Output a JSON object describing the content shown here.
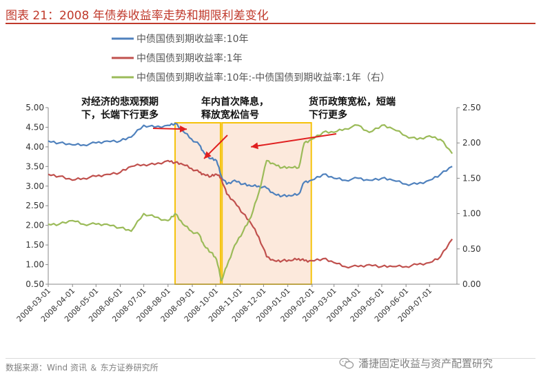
{
  "title": "图表 21：2008 年债券收益率走势和期限利差变化",
  "source": "数据来源：Wind 资讯 ＆ 东方证券研究所",
  "watermark": "潘捷固定收益与资产配置研究",
  "colors": {
    "title": "#c0392b",
    "blue": "#4f81bd",
    "red": "#c0504d",
    "green": "#9bbb59",
    "highlight": "#fbe5d6",
    "box": "#f5c20a",
    "annotation": "#e02020"
  },
  "chart_data": {
    "type": "line",
    "legend_placement": "top",
    "grid": false,
    "series": [
      {
        "name": "中债国债到期收益率:10年",
        "axis": "left",
        "color": "#4f81bd",
        "x": [
          "2008-03-01",
          "2008-03-15",
          "2008-04-01",
          "2008-04-15",
          "2008-05-01",
          "2008-05-15",
          "2008-06-01",
          "2008-06-15",
          "2008-07-01",
          "2008-07-15",
          "2008-08-01",
          "2008-08-10",
          "2008-08-20",
          "2008-08-31",
          "2008-09-10",
          "2008-09-16",
          "2008-09-25",
          "2008-10-02",
          "2008-10-08",
          "2008-10-15",
          "2008-10-25",
          "2008-11-05",
          "2008-11-15",
          "2008-11-25",
          "2008-12-05",
          "2008-12-15",
          "2008-12-25",
          "2009-01-05",
          "2009-01-15",
          "2009-01-22",
          "2009-01-31",
          "2009-02-15",
          "2009-03-01",
          "2009-03-15",
          "2009-04-01",
          "2009-04-15",
          "2009-05-01",
          "2009-05-15",
          "2009-06-01",
          "2009-06-15",
          "2009-07-01",
          "2009-07-15",
          "2009-07-30"
        ],
        "values": [
          4.15,
          4.1,
          4.05,
          4.05,
          4.1,
          4.15,
          4.15,
          4.25,
          4.55,
          4.5,
          4.55,
          4.6,
          4.4,
          4.2,
          4.05,
          3.85,
          3.7,
          3.65,
          3.25,
          3.05,
          3.15,
          3.05,
          3.0,
          3.0,
          2.95,
          2.8,
          2.75,
          2.75,
          2.8,
          3.1,
          3.15,
          3.3,
          3.2,
          3.15,
          3.2,
          3.15,
          3.2,
          3.15,
          3.05,
          3.05,
          3.15,
          3.3,
          3.5
        ]
      },
      {
        "name": "中债国债到期收益率:1年",
        "axis": "left",
        "color": "#c0504d",
        "x": [
          "2008-03-01",
          "2008-03-15",
          "2008-04-01",
          "2008-04-15",
          "2008-05-01",
          "2008-05-15",
          "2008-06-01",
          "2008-06-15",
          "2008-07-01",
          "2008-07-15",
          "2008-08-01",
          "2008-08-10",
          "2008-08-20",
          "2008-08-31",
          "2008-09-10",
          "2008-09-16",
          "2008-09-25",
          "2008-10-02",
          "2008-10-08",
          "2008-10-15",
          "2008-10-25",
          "2008-11-05",
          "2008-11-15",
          "2008-11-25",
          "2008-12-05",
          "2008-12-15",
          "2008-12-25",
          "2009-01-05",
          "2009-01-15",
          "2009-01-22",
          "2009-01-31",
          "2009-02-15",
          "2009-03-01",
          "2009-03-15",
          "2009-04-01",
          "2009-04-15",
          "2009-05-01",
          "2009-05-15",
          "2009-06-01",
          "2009-06-15",
          "2009-07-01",
          "2009-07-15",
          "2009-07-30"
        ],
        "values": [
          3.3,
          3.25,
          3.15,
          3.2,
          3.25,
          3.3,
          3.35,
          3.5,
          3.55,
          3.55,
          3.65,
          3.6,
          3.55,
          3.45,
          3.35,
          3.3,
          3.25,
          3.3,
          3.2,
          2.8,
          2.6,
          2.3,
          2.05,
          1.7,
          1.2,
          1.1,
          1.1,
          1.1,
          1.15,
          1.1,
          1.1,
          1.15,
          1.05,
          0.95,
          0.95,
          1.0,
          0.95,
          0.95,
          0.95,
          1.0,
          1.05,
          1.2,
          1.65
        ]
      },
      {
        "name": "中债国债到期收益率:10年:-中债国债到期收益率:1年（右）",
        "axis": "right",
        "color": "#9bbb59",
        "x": [
          "2008-03-01",
          "2008-03-15",
          "2008-04-01",
          "2008-04-15",
          "2008-05-01",
          "2008-05-15",
          "2008-06-01",
          "2008-06-15",
          "2008-07-01",
          "2008-07-15",
          "2008-08-01",
          "2008-08-10",
          "2008-08-20",
          "2008-08-31",
          "2008-09-10",
          "2008-09-16",
          "2008-09-25",
          "2008-10-02",
          "2008-10-08",
          "2008-10-15",
          "2008-10-25",
          "2008-11-05",
          "2008-11-15",
          "2008-11-25",
          "2008-12-05",
          "2008-12-15",
          "2008-12-25",
          "2009-01-05",
          "2009-01-15",
          "2009-01-22",
          "2009-01-31",
          "2009-02-15",
          "2009-03-01",
          "2009-03-15",
          "2009-04-01",
          "2009-04-15",
          "2009-05-01",
          "2009-05-15",
          "2009-06-01",
          "2009-06-15",
          "2009-07-01",
          "2009-07-15",
          "2009-07-30"
        ],
        "values": [
          0.85,
          0.85,
          0.9,
          0.85,
          0.85,
          0.85,
          0.8,
          0.75,
          1.0,
          0.95,
          0.9,
          1.0,
          0.85,
          0.75,
          0.7,
          0.55,
          0.45,
          0.35,
          0.05,
          0.25,
          0.55,
          0.75,
          0.95,
          1.3,
          1.75,
          1.7,
          1.65,
          1.65,
          1.65,
          2.0,
          2.05,
          2.15,
          2.15,
          2.2,
          2.25,
          2.15,
          2.25,
          2.2,
          2.1,
          2.05,
          2.1,
          2.05,
          1.85
        ]
      }
    ],
    "left_axis": {
      "ylim": [
        0.5,
        5.0
      ],
      "ticks": [
        "5.00",
        "4.50",
        "4.00",
        "3.50",
        "3.00",
        "2.50",
        "2.00",
        "1.50",
        "1.00",
        "0.50"
      ]
    },
    "right_axis": {
      "ylim": [
        0.0,
        2.5
      ],
      "ticks": [
        "2.50",
        "2.00",
        "1.50",
        "1.00",
        "0.50",
        "0.00"
      ]
    },
    "xlim": [
      "2008-03-01",
      "2009-08-05"
    ],
    "x_ticks": [
      "2008-03-01",
      "2008-04-01",
      "2008-05-01",
      "2008-06-01",
      "2008-07-01",
      "2008-08-01",
      "2008-09-01",
      "2008-10-01",
      "2008-11-01",
      "2008-12-01",
      "2009-01-01",
      "2009-02-01",
      "2009-03-01",
      "2009-04-01",
      "2009-05-01",
      "2009-06-01",
      "2009-07-01"
    ],
    "highlight_periods": [
      {
        "start": "2008-08-10",
        "end": "2008-10-07"
      },
      {
        "start": "2008-10-09",
        "end": "2009-01-31"
      }
    ],
    "annotations": [
      {
        "lines": [
          "对经济的悲观预期",
          "下，长端下行更多"
        ],
        "arrow_to": {
          "x": "2008-08-25",
          "y": 4.45
        }
      },
      {
        "lines": [
          "年内首次降息，",
          "释放宽松信号"
        ],
        "arrow_to": {
          "x": "2008-09-16",
          "y": 3.7
        }
      },
      {
        "lines": [
          "货币政策宽松，短端",
          "下行更多"
        ],
        "arrow_to": {
          "x": "2008-11-15",
          "y": 4.0
        }
      }
    ]
  }
}
